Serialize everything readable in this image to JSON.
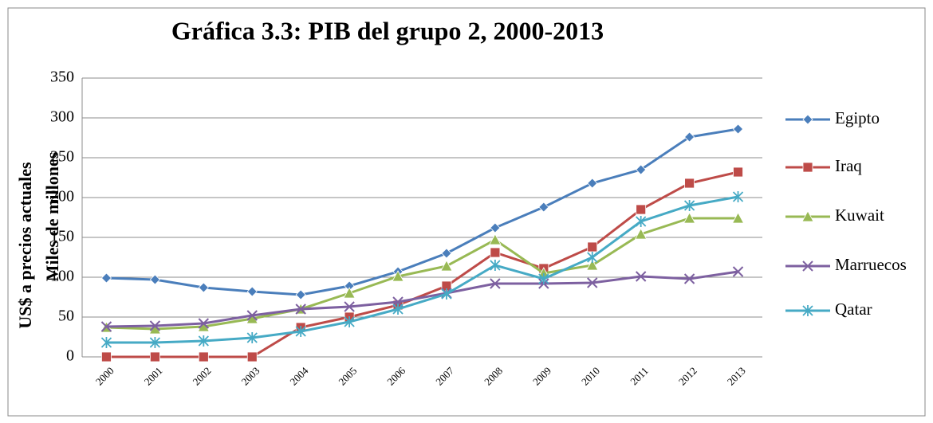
{
  "chart_data": {
    "type": "line",
    "title": "Gráfica 3.3: PIB del grupo 2, 2000-2013",
    "ylabel": [
      "US$ a precios actuales",
      "Miles de millones"
    ],
    "categories": [
      "2000",
      "2001",
      "2002",
      "2003",
      "2004",
      "2005",
      "2006",
      "2007",
      "2008",
      "2009",
      "2010",
      "2011",
      "2012",
      "2013"
    ],
    "series": [
      {
        "name": "Egipto",
        "color": "#4a7ebb",
        "marker": "diamond",
        "values": [
          99,
          97,
          87,
          82,
          78,
          89,
          107,
          130,
          162,
          188,
          218,
          235,
          276,
          286
        ]
      },
      {
        "name": "Iraq",
        "color": "#be4b48",
        "marker": "square",
        "values": [
          0,
          0,
          0,
          0,
          37,
          50,
          65,
          89,
          131,
          111,
          138,
          185,
          218,
          232
        ]
      },
      {
        "name": "Kuwait",
        "color": "#98b954",
        "marker": "triangle",
        "values": [
          37,
          35,
          38,
          48,
          60,
          80,
          101,
          114,
          147,
          105,
          115,
          154,
          174,
          174
        ]
      },
      {
        "name": "Marruecos",
        "color": "#7d60a0",
        "marker": "x",
        "values": [
          38,
          39,
          42,
          52,
          60,
          63,
          69,
          80,
          92,
          92,
          93,
          101,
          98,
          107
        ]
      },
      {
        "name": "Qatar",
        "color": "#46aac5",
        "marker": "star",
        "values": [
          18,
          18,
          20,
          24,
          32,
          44,
          60,
          79,
          115,
          98,
          125,
          170,
          190,
          201
        ]
      }
    ],
    "ylim": [
      0,
      350
    ],
    "yticks": [
      0,
      50,
      100,
      150,
      200,
      250,
      300,
      350
    ],
    "grid": true,
    "legend": "right"
  }
}
